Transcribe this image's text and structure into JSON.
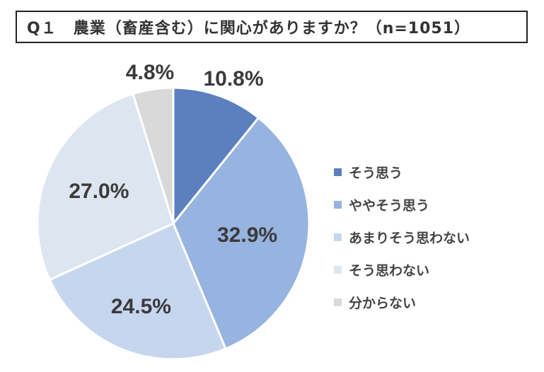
{
  "title": "Q１　農業（畜産含む）に関心がありますか？（n=1051）",
  "chart_data": {
    "type": "pie",
    "title": "Q１　農業（畜産含む）に関心がありますか？（n=1051）",
    "slices": [
      {
        "label": "そう思う",
        "value": 10.8,
        "display": "10.8%",
        "color": "#5b7fbf"
      },
      {
        "label": "ややそう思う",
        "value": 32.9,
        "display": "32.9%",
        "color": "#97b3e0"
      },
      {
        "label": "あまりそう思わない",
        "value": 24.5,
        "display": "24.5%",
        "color": "#c7d6ef"
      },
      {
        "label": "そう思わない",
        "value": 27.0,
        "display": "27.0%",
        "color": "#dde5f1"
      },
      {
        "label": "分からない",
        "value": 4.8,
        "display": "4.8%",
        "color": "#d9d9d9"
      }
    ],
    "legend_position": "right",
    "start_angle": "12 o'clock",
    "direction": "clockwise"
  }
}
